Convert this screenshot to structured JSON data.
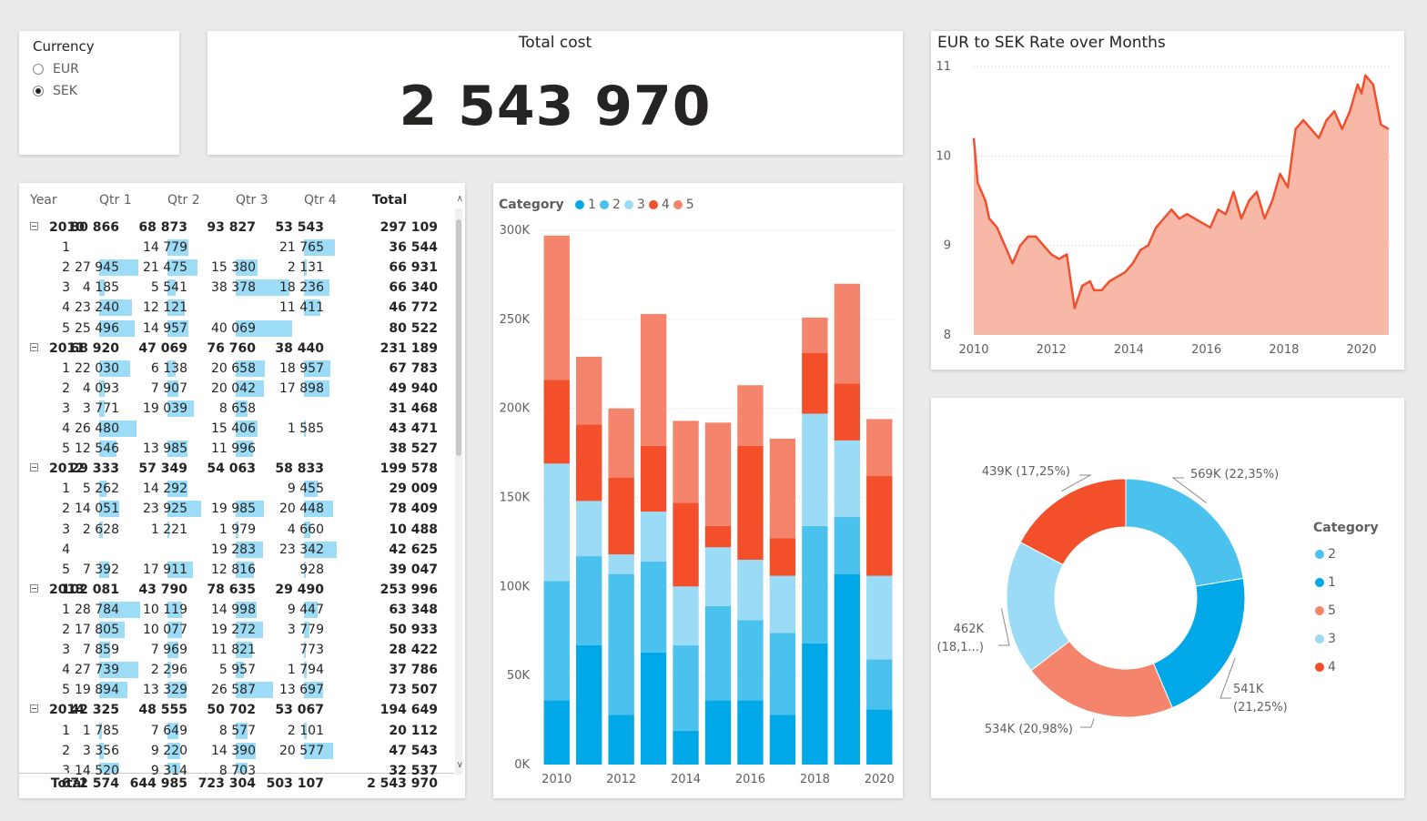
{
  "slicer": {
    "title": "Currency",
    "options": [
      {
        "label": "EUR",
        "checked": false
      },
      {
        "label": "SEK",
        "checked": true
      }
    ]
  },
  "kpi": {
    "title": "Total cost",
    "value": "2 543 970"
  },
  "matrix": {
    "headers": [
      "Year",
      "Qtr 1",
      "Qtr 2",
      "Qtr 3",
      "Qtr 4",
      "Total"
    ],
    "rows": [
      {
        "label": "2010",
        "bold": true,
        "expander": true,
        "cells": [
          "80 866",
          "68 873",
          "93 827",
          "53 543",
          "297 109"
        ],
        "bars": [
          0,
          0,
          0,
          0
        ]
      },
      {
        "label": "1",
        "cells": [
          "",
          "14 779",
          "",
          "21 765",
          "36 544"
        ],
        "bars": [
          0,
          14779,
          0,
          21765
        ]
      },
      {
        "label": "2",
        "cells": [
          "27 945",
          "21 475",
          "15 380",
          "2 131",
          "66 931"
        ],
        "bars": [
          27945,
          21475,
          15380,
          2131
        ]
      },
      {
        "label": "3",
        "cells": [
          "4 185",
          "5 541",
          "38 378",
          "18 236",
          "66 340"
        ],
        "bars": [
          4185,
          5541,
          38378,
          18236
        ]
      },
      {
        "label": "4",
        "cells": [
          "23 240",
          "12 121",
          "",
          "11 411",
          "46 772"
        ],
        "bars": [
          23240,
          12121,
          0,
          11411
        ]
      },
      {
        "label": "5",
        "cells": [
          "25 496",
          "14 957",
          "40 069",
          "",
          "80 522"
        ],
        "bars": [
          25496,
          14957,
          40069,
          0
        ]
      },
      {
        "label": "2011",
        "bold": true,
        "expander": true,
        "cells": [
          "68 920",
          "47 069",
          "76 760",
          "38 440",
          "231 189"
        ],
        "bars": [
          0,
          0,
          0,
          0
        ]
      },
      {
        "label": "1",
        "cells": [
          "22 030",
          "6 138",
          "20 658",
          "18 957",
          "67 783"
        ],
        "bars": [
          22030,
          6138,
          20658,
          18957
        ]
      },
      {
        "label": "2",
        "cells": [
          "4 093",
          "7 907",
          "20 042",
          "17 898",
          "49 940"
        ],
        "bars": [
          4093,
          7907,
          20042,
          17898
        ]
      },
      {
        "label": "3",
        "cells": [
          "3 771",
          "19 039",
          "8 658",
          "",
          "31 468"
        ],
        "bars": [
          3771,
          19039,
          8658,
          0
        ]
      },
      {
        "label": "4",
        "cells": [
          "26 480",
          "",
          "15 406",
          "1 585",
          "43 471"
        ],
        "bars": [
          26480,
          0,
          15406,
          1585
        ]
      },
      {
        "label": "5",
        "cells": [
          "12 546",
          "13 985",
          "11 996",
          "",
          "38 527"
        ],
        "bars": [
          12546,
          13985,
          11996,
          0
        ]
      },
      {
        "label": "2012",
        "bold": true,
        "expander": true,
        "cells": [
          "29 333",
          "57 349",
          "54 063",
          "58 833",
          "199 578"
        ],
        "bars": [
          0,
          0,
          0,
          0
        ]
      },
      {
        "label": "1",
        "cells": [
          "5 262",
          "14 292",
          "",
          "9 455",
          "29 009"
        ],
        "bars": [
          5262,
          14292,
          0,
          9455
        ]
      },
      {
        "label": "2",
        "cells": [
          "14 051",
          "23 925",
          "19 985",
          "20 448",
          "78 409"
        ],
        "bars": [
          14051,
          23925,
          19985,
          20448
        ]
      },
      {
        "label": "3",
        "cells": [
          "2 628",
          "1 221",
          "1 979",
          "4 660",
          "10 488"
        ],
        "bars": [
          2628,
          1221,
          1979,
          4660
        ]
      },
      {
        "label": "4",
        "cells": [
          "",
          "",
          "19 283",
          "23 342",
          "42 625"
        ],
        "bars": [
          0,
          0,
          19283,
          23342
        ]
      },
      {
        "label": "5",
        "cells": [
          "7 392",
          "17 911",
          "12 816",
          "928",
          "39 047"
        ],
        "bars": [
          7392,
          17911,
          12816,
          928
        ]
      },
      {
        "label": "2013",
        "bold": true,
        "expander": true,
        "cells": [
          "102 081",
          "43 790",
          "78 635",
          "29 490",
          "253 996"
        ],
        "bars": [
          0,
          0,
          0,
          0
        ]
      },
      {
        "label": "1",
        "cells": [
          "28 784",
          "10 119",
          "14 998",
          "9 447",
          "63 348"
        ],
        "bars": [
          28784,
          10119,
          14998,
          9447
        ]
      },
      {
        "label": "2",
        "cells": [
          "17 805",
          "10 077",
          "19 272",
          "3 779",
          "50 933"
        ],
        "bars": [
          17805,
          10077,
          19272,
          3779
        ]
      },
      {
        "label": "3",
        "cells": [
          "7 859",
          "7 969",
          "11 821",
          "773",
          "28 422"
        ],
        "bars": [
          7859,
          7969,
          11821,
          773
        ]
      },
      {
        "label": "4",
        "cells": [
          "27 739",
          "2 296",
          "5 957",
          "1 794",
          "37 786"
        ],
        "bars": [
          27739,
          2296,
          5957,
          1794
        ]
      },
      {
        "label": "5",
        "cells": [
          "19 894",
          "13 329",
          "26 587",
          "13 697",
          "73 507"
        ],
        "bars": [
          19894,
          13329,
          26587,
          13697
        ]
      },
      {
        "label": "2014",
        "bold": true,
        "expander": true,
        "cells": [
          "42 325",
          "48 555",
          "50 702",
          "53 067",
          "194 649"
        ],
        "bars": [
          0,
          0,
          0,
          0
        ]
      },
      {
        "label": "1",
        "cells": [
          "1 785",
          "7 649",
          "8 577",
          "2 101",
          "20 112"
        ],
        "bars": [
          1785,
          7649,
          8577,
          2101
        ]
      },
      {
        "label": "2",
        "cells": [
          "3 356",
          "9 220",
          "14 390",
          "20 577",
          "47 543"
        ],
        "bars": [
          3356,
          9220,
          14390,
          20577
        ]
      },
      {
        "label": "3",
        "cells": [
          "14 520",
          "9 314",
          "8 703",
          "",
          "32 537"
        ],
        "bars": [
          14520,
          9314,
          8703,
          0
        ]
      }
    ],
    "total": {
      "label": "Total",
      "cells": [
        "672 574",
        "644 985",
        "723 304",
        "503 107",
        "2 543 970"
      ]
    },
    "bar_max": 40069
  },
  "colors": {
    "cat1": "#01A8E7",
    "cat2": "#4BC1EE",
    "cat3": "#9CDBF6",
    "cat4": "#F24F2A",
    "cat5": "#F4846C",
    "line": "#F0502D",
    "area": "#F8B8A8",
    "databar": "#9DDCF7"
  },
  "charts": [
    {
      "type": "bar",
      "stacked": true,
      "title": "",
      "legend_title": "Category",
      "legend_position": "top-left",
      "categories": [
        "2010",
        "2011",
        "2012",
        "2013",
        "2014",
        "2015",
        "2016",
        "2017",
        "2018",
        "2019",
        "2020"
      ],
      "x_tick_labels": [
        "2010",
        "2012",
        "2014",
        "2016",
        "2018",
        "2020"
      ],
      "y_tick_labels": [
        "0K",
        "50K",
        "100K",
        "150K",
        "200K",
        "250K",
        "300K"
      ],
      "ylim": [
        0,
        300000
      ],
      "grid": true,
      "series": [
        {
          "name": "1",
          "values": [
            36000,
            67000,
            28000,
            63000,
            19000,
            36000,
            36000,
            28000,
            68000,
            107000,
            31000
          ]
        },
        {
          "name": "2",
          "values": [
            67000,
            50000,
            79000,
            51000,
            48000,
            53000,
            45000,
            46000,
            66000,
            32000,
            28000
          ]
        },
        {
          "name": "3",
          "values": [
            66000,
            31000,
            11000,
            28000,
            33000,
            33000,
            34000,
            32000,
            63000,
            43000,
            47000
          ]
        },
        {
          "name": "4",
          "values": [
            47000,
            43000,
            43000,
            37000,
            47000,
            12000,
            64000,
            21000,
            34000,
            32000,
            56000
          ]
        },
        {
          "name": "5",
          "values": [
            81000,
            38000,
            39000,
            74000,
            46000,
            58000,
            34000,
            56000,
            20000,
            56000,
            32000
          ]
        }
      ]
    },
    {
      "type": "area",
      "title": "EUR to SEK Rate over Months",
      "x_tick_labels": [
        "2010",
        "2012",
        "2014",
        "2016",
        "2018",
        "2020"
      ],
      "y_tick_labels": [
        "8",
        "9",
        "10",
        "11"
      ],
      "xlim": [
        2010,
        2020.75
      ],
      "ylim": [
        8,
        11
      ],
      "grid": true,
      "x": [
        2010.0,
        2010.1,
        2010.2,
        2010.3,
        2010.4,
        2010.6,
        2010.8,
        2011.0,
        2011.2,
        2011.4,
        2011.6,
        2011.8,
        2012.0,
        2012.2,
        2012.4,
        2012.6,
        2012.8,
        2013.0,
        2013.1,
        2013.3,
        2013.5,
        2013.7,
        2013.9,
        2014.1,
        2014.3,
        2014.5,
        2014.7,
        2014.9,
        2015.1,
        2015.3,
        2015.5,
        2015.7,
        2015.9,
        2016.1,
        2016.3,
        2016.5,
        2016.7,
        2016.9,
        2017.1,
        2017.3,
        2017.5,
        2017.7,
        2017.9,
        2018.1,
        2018.3,
        2018.5,
        2018.7,
        2018.9,
        2019.1,
        2019.3,
        2019.5,
        2019.7,
        2019.9,
        2020.0,
        2020.1,
        2020.3,
        2020.5,
        2020.7
      ],
      "y": [
        10.2,
        9.7,
        9.6,
        9.5,
        9.3,
        9.2,
        9.0,
        8.8,
        9.0,
        9.1,
        9.1,
        9.0,
        8.9,
        8.85,
        8.9,
        8.3,
        8.55,
        8.6,
        8.5,
        8.5,
        8.6,
        8.65,
        8.7,
        8.8,
        8.95,
        9.0,
        9.2,
        9.3,
        9.4,
        9.3,
        9.35,
        9.3,
        9.25,
        9.2,
        9.4,
        9.35,
        9.6,
        9.3,
        9.5,
        9.6,
        9.3,
        9.5,
        9.8,
        9.65,
        10.3,
        10.4,
        10.3,
        10.2,
        10.4,
        10.5,
        10.3,
        10.5,
        10.8,
        10.7,
        10.9,
        10.8,
        10.35,
        10.3
      ]
    },
    {
      "type": "pie",
      "donut": true,
      "title": "",
      "legend_title": "Category",
      "legend_position": "right",
      "slices": [
        {
          "name": "2",
          "value": 569,
          "label": "569K (22,35%)"
        },
        {
          "name": "1",
          "value": 541,
          "label": "541K (21,25%)"
        },
        {
          "name": "5",
          "value": 534,
          "label": "534K (20,98%)"
        },
        {
          "name": "3",
          "value": 462,
          "label": "462K (18,1...)"
        },
        {
          "name": "4",
          "value": 439,
          "label": "439K (17,25%)"
        }
      ]
    }
  ]
}
